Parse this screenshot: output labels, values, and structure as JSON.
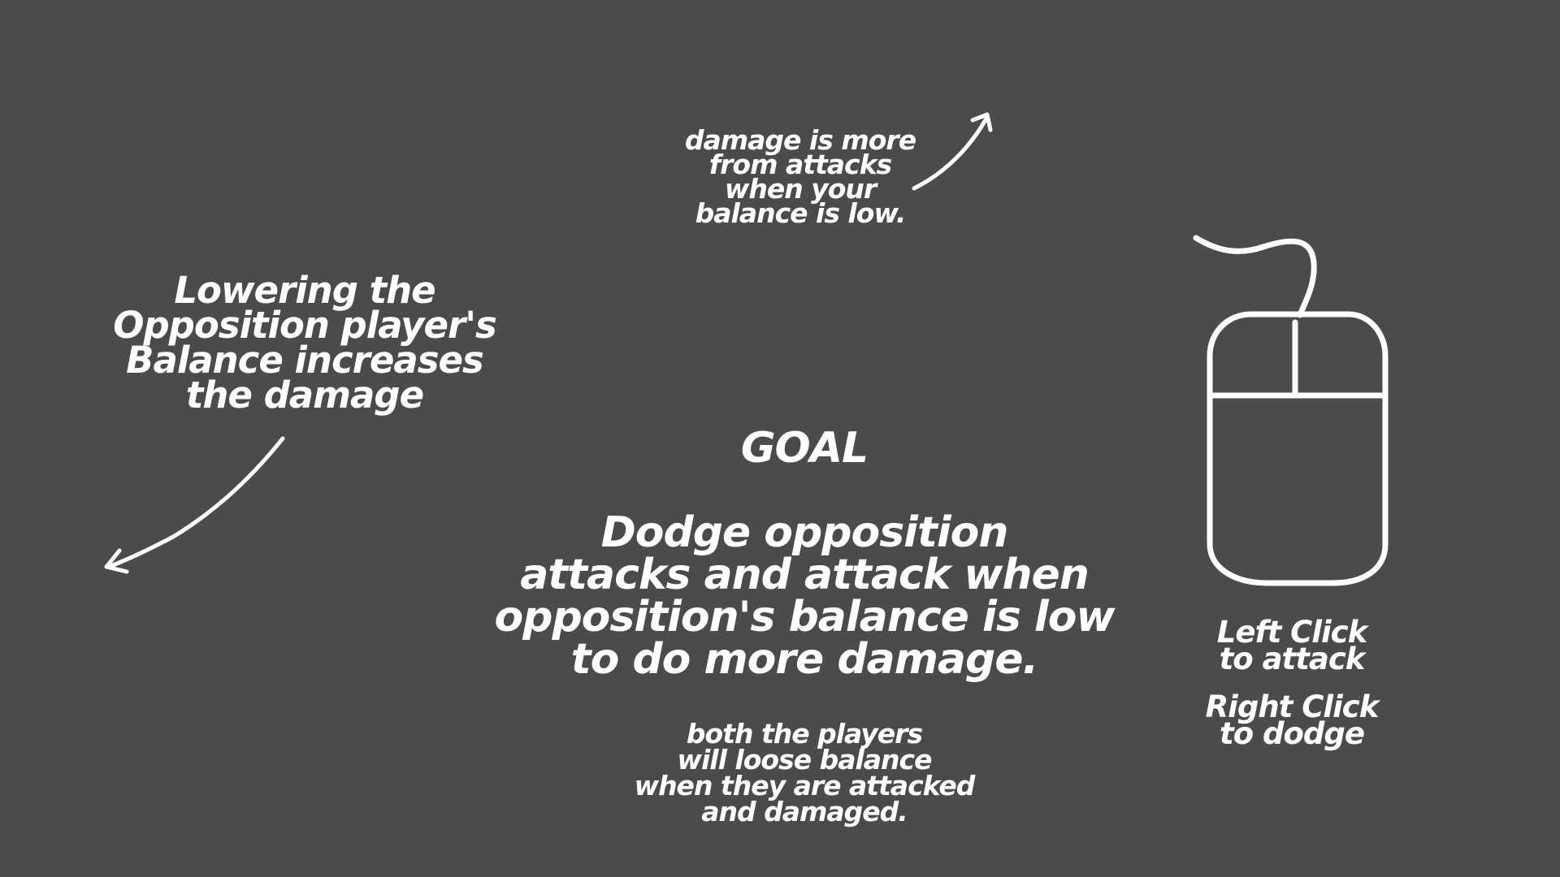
{
  "notes": {
    "damage_text": "damage is more\nfrom attacks\nwhen your\nbalance is low.",
    "balance_text": "Lowering the\nOpposition player's\nBalance increases\nthe damage",
    "both_text": "both the players\nwill loose balance\nwhen they are attacked\nand damaged."
  },
  "goal": {
    "heading": "GOAL",
    "body": "Dodge opposition\nattacks and attack when\nopposition's balance is low\nto do more damage."
  },
  "controls": {
    "left_click": "Left Click\nto attack",
    "right_click": "Right Click\nto dodge"
  },
  "icons": {
    "mouse": "computer-mouse-icon",
    "arrow_up_right": "curved-arrow-up-right-icon",
    "arrow_down_left": "curved-arrow-down-left-icon"
  },
  "colors": {
    "background": "#4b4b4b",
    "foreground": "#ffffff"
  }
}
